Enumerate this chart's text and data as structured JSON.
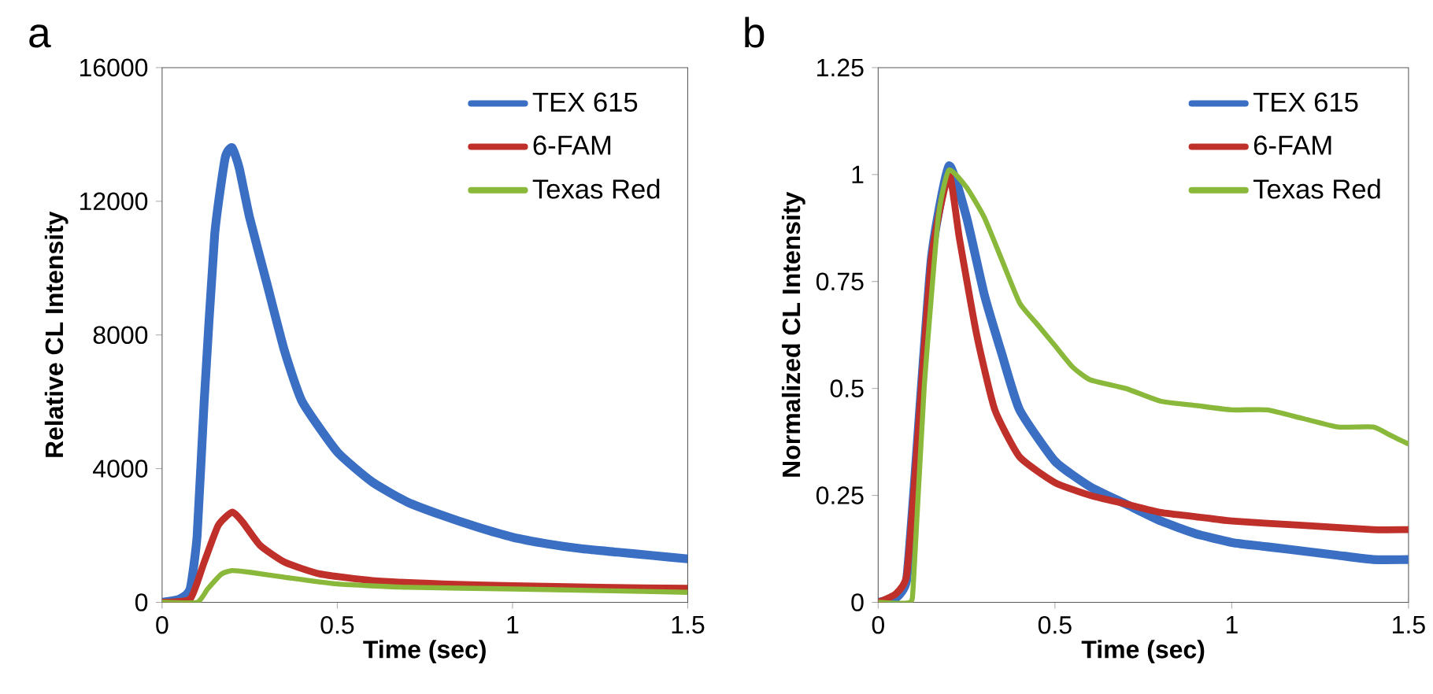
{
  "chart_data": [
    {
      "type": "line",
      "title": "a",
      "xlabel": "Time (sec)",
      "ylabel": "Relative CL Intensity",
      "xlim": [
        0,
        1.5
      ],
      "ylim": [
        0,
        16000
      ],
      "xticks": [
        0,
        0.5,
        1,
        1.5
      ],
      "yticks": [
        0,
        4000,
        8000,
        12000,
        16000
      ],
      "legend": "top right",
      "grid": false,
      "marker": "none",
      "line_style": "solid",
      "series": [
        {
          "name": "TEX 615",
          "color": "#3b6fc3",
          "x": [
            0,
            0.05,
            0.08,
            0.1,
            0.12,
            0.15,
            0.18,
            0.2,
            0.22,
            0.25,
            0.3,
            0.35,
            0.4,
            0.5,
            0.6,
            0.7,
            0.8,
            0.9,
            1.0,
            1.1,
            1.2,
            1.3,
            1.4,
            1.5
          ],
          "values": [
            0,
            100,
            400,
            2000,
            6000,
            11000,
            13300,
            13600,
            13000,
            11500,
            9500,
            7500,
            6000,
            4500,
            3600,
            3000,
            2600,
            2250,
            1950,
            1750,
            1600,
            1500,
            1400,
            1300
          ]
        },
        {
          "name": "6-FAM",
          "color": "#c0302a",
          "x": [
            0,
            0.08,
            0.12,
            0.16,
            0.2,
            0.23,
            0.28,
            0.35,
            0.45,
            0.6,
            0.8,
            1.0,
            1.25,
            1.5
          ],
          "values": [
            0,
            100,
            1200,
            2300,
            2700,
            2400,
            1700,
            1200,
            850,
            650,
            550,
            500,
            450,
            420
          ]
        },
        {
          "name": "Texas Red",
          "color": "#8ab83a",
          "x": [
            0,
            0.1,
            0.13,
            0.17,
            0.2,
            0.25,
            0.35,
            0.5,
            0.7,
            1.0,
            1.25,
            1.5
          ],
          "values": [
            0,
            0,
            400,
            850,
            950,
            900,
            750,
            550,
            450,
            400,
            350,
            300
          ]
        }
      ]
    },
    {
      "type": "line",
      "title": "b",
      "xlabel": "Time (sec)",
      "ylabel": "Normalized CL Intensity",
      "xlim": [
        0,
        1.5
      ],
      "ylim": [
        0,
        1.25
      ],
      "xticks": [
        0,
        0.5,
        1,
        1.5
      ],
      "yticks": [
        0,
        0.25,
        0.5,
        0.75,
        1,
        1.25
      ],
      "legend": "top right",
      "grid": false,
      "marker": "none",
      "line_style": "solid",
      "series": [
        {
          "name": "TEX 615",
          "color": "#3b6fc3",
          "x": [
            0,
            0.05,
            0.08,
            0.1,
            0.15,
            0.2,
            0.25,
            0.3,
            0.35,
            0.4,
            0.5,
            0.6,
            0.7,
            0.8,
            0.9,
            1.0,
            1.1,
            1.2,
            1.3,
            1.4,
            1.5
          ],
          "values": [
            0,
            0.01,
            0.05,
            0.25,
            0.8,
            1.02,
            0.9,
            0.72,
            0.58,
            0.45,
            0.33,
            0.27,
            0.23,
            0.19,
            0.16,
            0.14,
            0.13,
            0.12,
            0.11,
            0.1,
            0.1
          ]
        },
        {
          "name": "6-FAM",
          "color": "#c0302a",
          "x": [
            0,
            0.05,
            0.08,
            0.1,
            0.15,
            0.2,
            0.23,
            0.28,
            0.33,
            0.4,
            0.5,
            0.6,
            0.7,
            0.8,
            0.9,
            1.0,
            1.2,
            1.4,
            1.5
          ],
          "values": [
            0,
            0.02,
            0.06,
            0.25,
            0.8,
            1.0,
            0.85,
            0.62,
            0.45,
            0.34,
            0.28,
            0.25,
            0.23,
            0.21,
            0.2,
            0.19,
            0.18,
            0.17,
            0.17
          ]
        },
        {
          "name": "Texas Red",
          "color": "#8ab83a",
          "x": [
            0,
            0.09,
            0.1,
            0.13,
            0.17,
            0.2,
            0.25,
            0.3,
            0.35,
            0.4,
            0.45,
            0.5,
            0.55,
            0.6,
            0.7,
            0.8,
            0.9,
            1.0,
            1.1,
            1.2,
            1.3,
            1.4,
            1.45,
            1.5
          ],
          "values": [
            0,
            0,
            0.05,
            0.5,
            0.9,
            1.01,
            0.97,
            0.9,
            0.8,
            0.7,
            0.65,
            0.6,
            0.55,
            0.52,
            0.5,
            0.47,
            0.46,
            0.45,
            0.45,
            0.43,
            0.41,
            0.41,
            0.39,
            0.37
          ]
        }
      ]
    }
  ]
}
